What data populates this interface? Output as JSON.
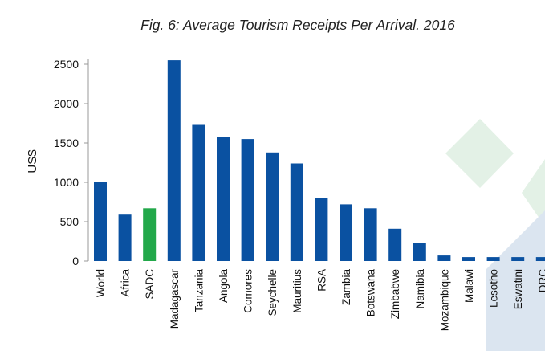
{
  "chart_data": {
    "type": "bar",
    "title": "Fig. 6: Average Tourism Receipts Per Arrival. 2016",
    "xlabel": "",
    "ylabel": "US$",
    "ylim": [
      0,
      2500
    ],
    "yticks": [
      "0",
      "500",
      "1000",
      "1500",
      "2000",
      "2500"
    ],
    "categories": [
      "World",
      "Africa",
      "SADC",
      "Madagascar",
      "Tanzania",
      "Angola",
      "Comores",
      "Seychelle",
      "Mauritius",
      "RSA",
      "Zambia",
      "Botswana",
      "Zimbabwe",
      "Namibia",
      "Mozambique",
      "Malawi",
      "Lesotho",
      "Eswatini",
      "DRC"
    ],
    "values": [
      1000,
      590,
      670,
      2550,
      1730,
      1580,
      1550,
      1380,
      1240,
      800,
      720,
      670,
      410,
      230,
      70,
      50,
      50,
      50,
      50
    ],
    "colors": {
      "default_bar": "#0a51a1",
      "highlight_bar": "#22a84a",
      "highlight_categories": [
        "SADC"
      ],
      "decor_green": "#e3f1e6",
      "decor_blue": "#dbe5f0",
      "axis": "#999999"
    },
    "grid": false,
    "legend": "none"
  }
}
